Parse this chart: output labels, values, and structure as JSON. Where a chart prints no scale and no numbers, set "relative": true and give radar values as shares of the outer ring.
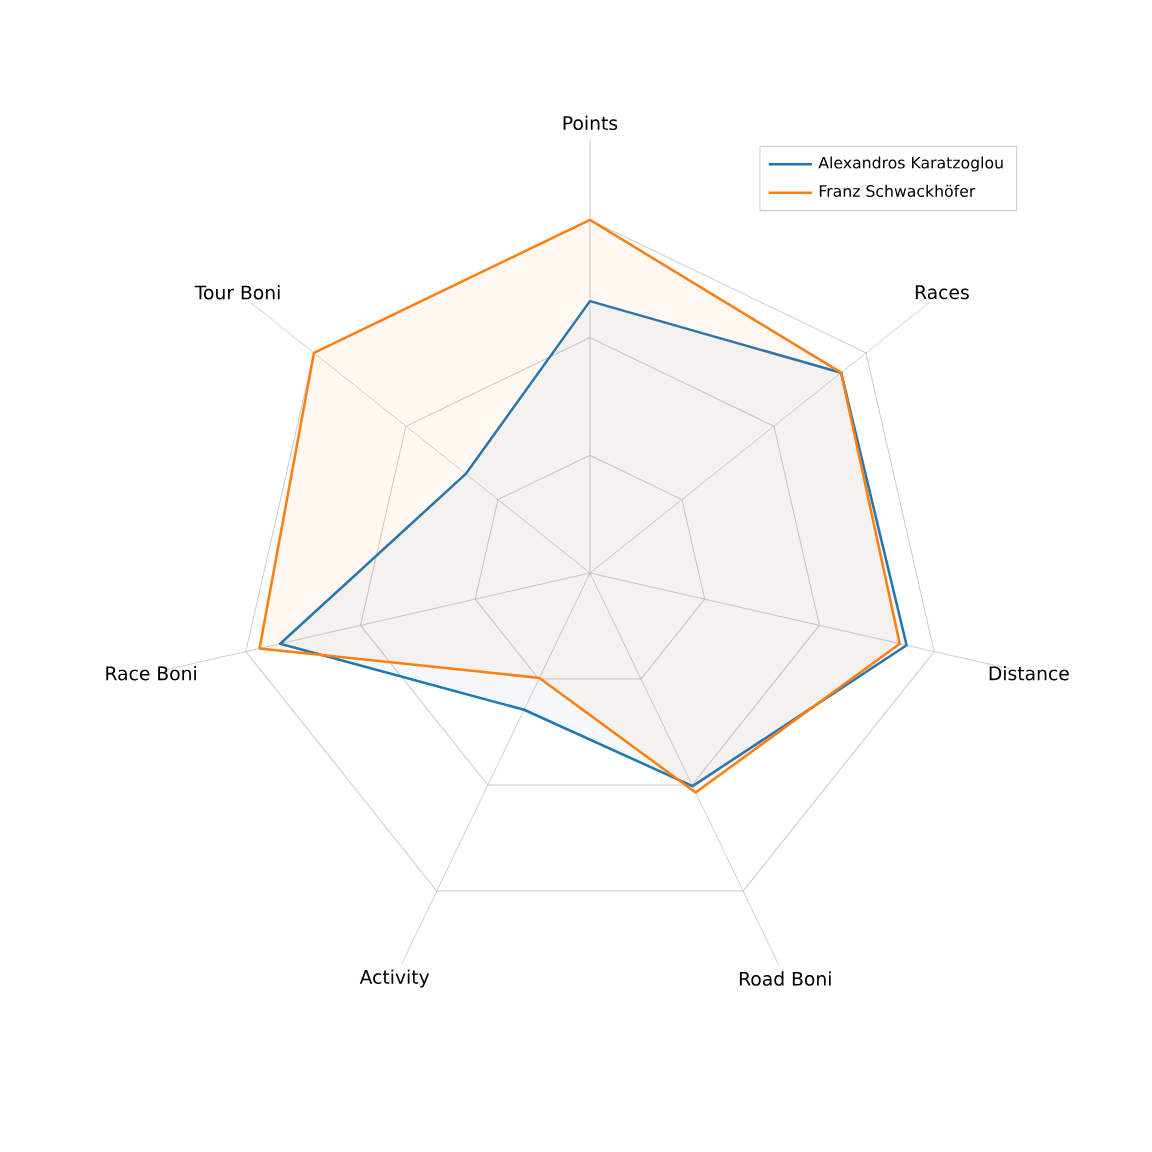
{
  "chart_data": {
    "type": "radar",
    "relative": true,
    "grid": true,
    "legend": "top right",
    "categories": [
      "Points",
      "Races",
      "Distance",
      "Road Boni",
      "Activity",
      "Race Boni",
      "Tour Boni"
    ],
    "series": [
      {
        "name": "Alexandros Karatzoglou",
        "color": "#1f77b4",
        "values": [
          0.77,
          0.91,
          0.92,
          0.67,
          0.43,
          0.9,
          0.45
        ]
      },
      {
        "name": "Franz Schwackhöfer",
        "color": "#ff7f0e",
        "values": [
          1.0,
          0.91,
          0.9,
          0.69,
          0.33,
          0.96,
          1.0
        ]
      }
    ]
  }
}
